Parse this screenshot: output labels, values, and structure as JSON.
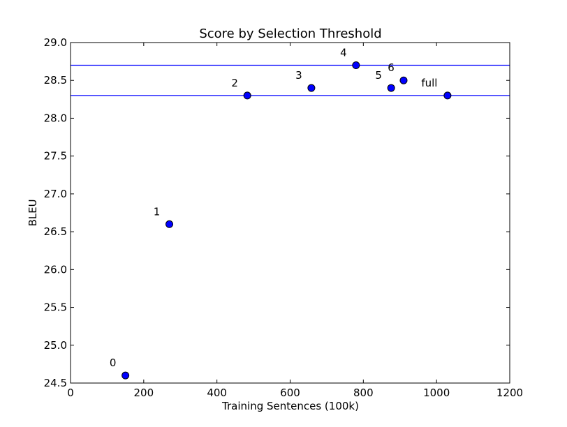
{
  "chart_data": {
    "type": "scatter",
    "title": "Score by Selection Threshold",
    "xlabel": "Training Sentences (100k)",
    "ylabel": "BLEU",
    "xlim": [
      0,
      1200
    ],
    "ylim": [
      24.5,
      29.0
    ],
    "x_ticks": [
      0,
      200,
      400,
      600,
      800,
      1000,
      1200
    ],
    "y_ticks": [
      24.5,
      25.0,
      25.5,
      26.0,
      26.5,
      27.0,
      27.5,
      28.0,
      28.5,
      29.0
    ],
    "grid": false,
    "points": [
      {
        "label": "0",
        "x": 150,
        "y": 24.6
      },
      {
        "label": "1",
        "x": 270,
        "y": 26.6
      },
      {
        "label": "2",
        "x": 483,
        "y": 28.3
      },
      {
        "label": "3",
        "x": 658,
        "y": 28.4
      },
      {
        "label": "4",
        "x": 780,
        "y": 28.7
      },
      {
        "label": "5",
        "x": 876,
        "y": 28.4
      },
      {
        "label": "6",
        "x": 910,
        "y": 28.5
      },
      {
        "label": "full",
        "x": 1030,
        "y": 28.3
      }
    ],
    "reference_lines": [
      {
        "orientation": "horizontal",
        "y": 28.7
      },
      {
        "orientation": "horizontal",
        "y": 28.3
      }
    ],
    "colors": {
      "marker_fill": "#0000ff",
      "marker_edge": "#000000",
      "reference_line": "#0000ff",
      "axes": "#000000"
    }
  }
}
